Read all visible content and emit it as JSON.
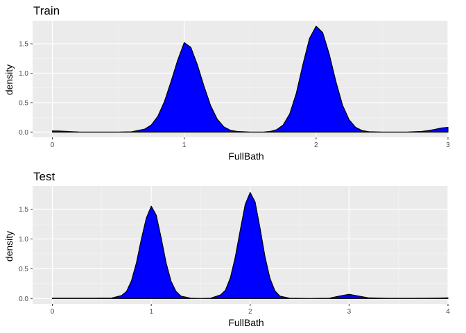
{
  "chart_data": [
    {
      "type": "area",
      "title": "Train",
      "xlabel": "FullBath",
      "ylabel": "density",
      "xlim": [
        -0.15,
        3.0
      ],
      "ylim": [
        -0.09,
        1.89
      ],
      "x_ticks": [
        0,
        1,
        2,
        3
      ],
      "y_ticks": [
        0.0,
        0.5,
        1.0,
        1.5
      ],
      "y_tick_labels": [
        "0.0",
        "0.5",
        "1.0",
        "1.5"
      ],
      "grid": true,
      "legend": "none",
      "fill_color": "#0000ff",
      "line_color": "#000000",
      "series": [
        {
          "x": [
            0.0,
            0.05,
            0.1,
            0.15,
            0.2,
            0.3,
            0.4,
            0.5,
            0.6,
            0.7,
            0.75,
            0.8,
            0.85,
            0.9,
            0.95,
            1.0,
            1.05,
            1.1,
            1.15,
            1.2,
            1.25,
            1.3,
            1.35,
            1.4,
            1.5,
            1.6,
            1.65,
            1.7,
            1.75,
            1.8,
            1.85,
            1.9,
            1.95,
            2.0,
            2.05,
            2.1,
            2.15,
            2.2,
            2.25,
            2.3,
            2.35,
            2.4,
            2.5,
            2.6,
            2.7,
            2.8,
            2.85,
            2.9,
            2.95,
            3.0
          ],
          "values": [
            0.02,
            0.018,
            0.012,
            0.006,
            0.002,
            0.0,
            0.0,
            0.0,
            0.005,
            0.05,
            0.12,
            0.27,
            0.52,
            0.86,
            1.22,
            1.52,
            1.44,
            1.14,
            0.78,
            0.45,
            0.22,
            0.09,
            0.03,
            0.01,
            0.0,
            0.0,
            0.01,
            0.04,
            0.12,
            0.31,
            0.66,
            1.15,
            1.59,
            1.8,
            1.69,
            1.32,
            0.86,
            0.46,
            0.21,
            0.08,
            0.025,
            0.006,
            0.0,
            0.0,
            0.002,
            0.01,
            0.025,
            0.045,
            0.07,
            0.08
          ]
        }
      ]
    },
    {
      "type": "area",
      "title": "Test",
      "xlabel": "FullBath",
      "ylabel": "density",
      "xlim": [
        -0.2,
        4.0
      ],
      "ylim": [
        -0.09,
        1.89
      ],
      "x_ticks": [
        0,
        1,
        2,
        3,
        4
      ],
      "y_ticks": [
        0.0,
        0.5,
        1.0,
        1.5
      ],
      "y_tick_labels": [
        "0.0",
        "0.5",
        "1.0",
        "1.5"
      ],
      "grid": true,
      "legend": "none",
      "fill_color": "#0000ff",
      "line_color": "#000000",
      "series": [
        {
          "x": [
            0.0,
            0.2,
            0.4,
            0.6,
            0.7,
            0.75,
            0.8,
            0.85,
            0.9,
            0.95,
            1.0,
            1.05,
            1.1,
            1.15,
            1.2,
            1.25,
            1.3,
            1.4,
            1.5,
            1.6,
            1.7,
            1.75,
            1.8,
            1.85,
            1.9,
            1.95,
            2.0,
            2.05,
            2.1,
            2.15,
            2.2,
            2.25,
            2.3,
            2.4,
            2.6,
            2.8,
            2.9,
            3.0,
            3.1,
            3.2,
            3.4,
            3.6,
            3.8,
            4.0
          ],
          "values": [
            0.005,
            0.005,
            0.005,
            0.008,
            0.05,
            0.12,
            0.3,
            0.6,
            1.0,
            1.35,
            1.55,
            1.4,
            1.02,
            0.6,
            0.29,
            0.12,
            0.04,
            0.005,
            0.0,
            0.005,
            0.06,
            0.14,
            0.35,
            0.7,
            1.15,
            1.58,
            1.78,
            1.62,
            1.18,
            0.7,
            0.34,
            0.13,
            0.04,
            0.005,
            0.0,
            0.005,
            0.04,
            0.07,
            0.04,
            0.01,
            0.003,
            0.003,
            0.005,
            0.01
          ]
        }
      ]
    }
  ]
}
